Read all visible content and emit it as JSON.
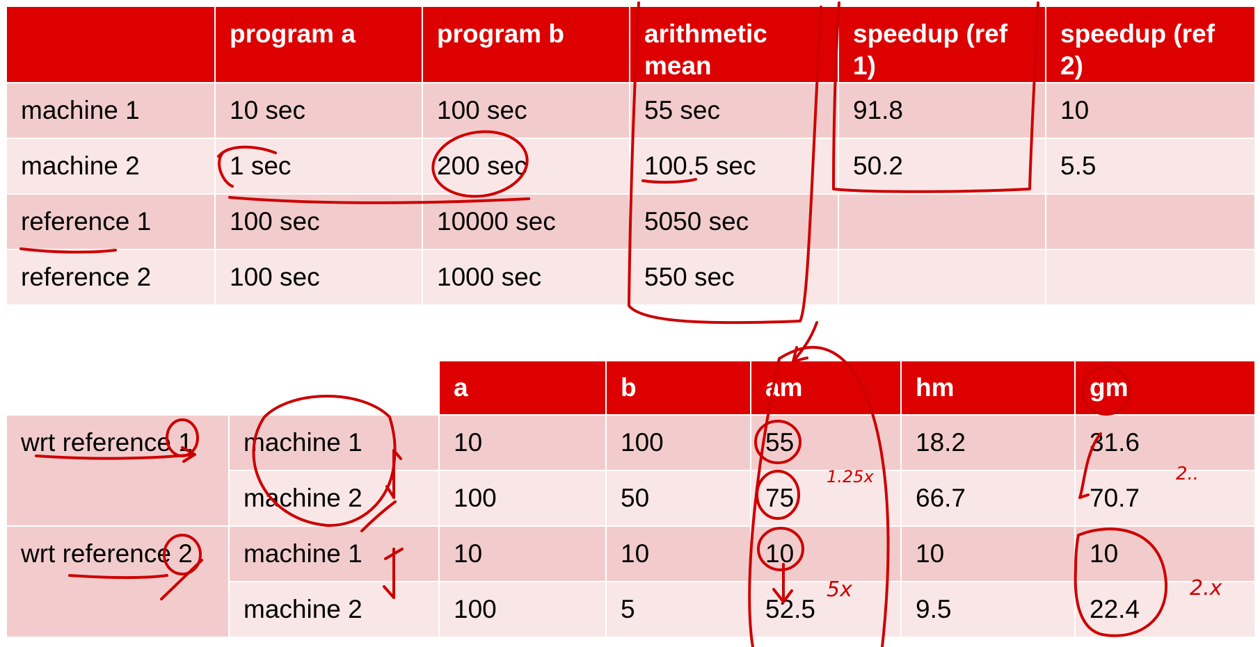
{
  "table1": {
    "headers": [
      "",
      "program a",
      "program b",
      "arithmetic mean",
      "speedup (ref 1)",
      "speedup (ref 2)"
    ],
    "rows": [
      {
        "label": "machine 1",
        "a": "10 sec",
        "b": "100 sec",
        "am": "55 sec",
        "s1": "91.8",
        "s2": "10"
      },
      {
        "label": "machine 2",
        "a": "1 sec",
        "b": "200 sec",
        "am": "100.5 sec",
        "s1": "50.2",
        "s2": "5.5"
      },
      {
        "label": "reference 1",
        "a": "100 sec",
        "b": "10000 sec",
        "am": "5050 sec",
        "s1": "",
        "s2": ""
      },
      {
        "label": "reference 2",
        "a": "100 sec",
        "b": "1000 sec",
        "am": "550 sec",
        "s1": "",
        "s2": ""
      }
    ]
  },
  "table2": {
    "headers": [
      "a",
      "b",
      "am",
      "hm",
      "gm"
    ],
    "groups": [
      {
        "label": "wrt reference 1",
        "rows": [
          {
            "machine": "machine 1",
            "a": "10",
            "b": "100",
            "am": "55",
            "hm": "18.2",
            "gm": "31.6"
          },
          {
            "machine": "machine 2",
            "a": "100",
            "b": "50",
            "am": "75",
            "hm": "66.7",
            "gm": "70.7"
          }
        ]
      },
      {
        "label": "wrt reference 2",
        "rows": [
          {
            "machine": "machine 1",
            "a": "10",
            "b": "10",
            "am": "10",
            "hm": "10",
            "gm": "10"
          },
          {
            "machine": "machine 2",
            "a": "100",
            "b": "5",
            "am": "52.5",
            "hm": "9.5",
            "gm": "22.4"
          }
        ]
      }
    ]
  },
  "annotations": {
    "am_ratio_1": "1.25x",
    "am_ratio_2": "5x",
    "gm_ratio_1": "2..",
    "gm_ratio_2": "2.x",
    "ink_color": "#cc0000"
  }
}
